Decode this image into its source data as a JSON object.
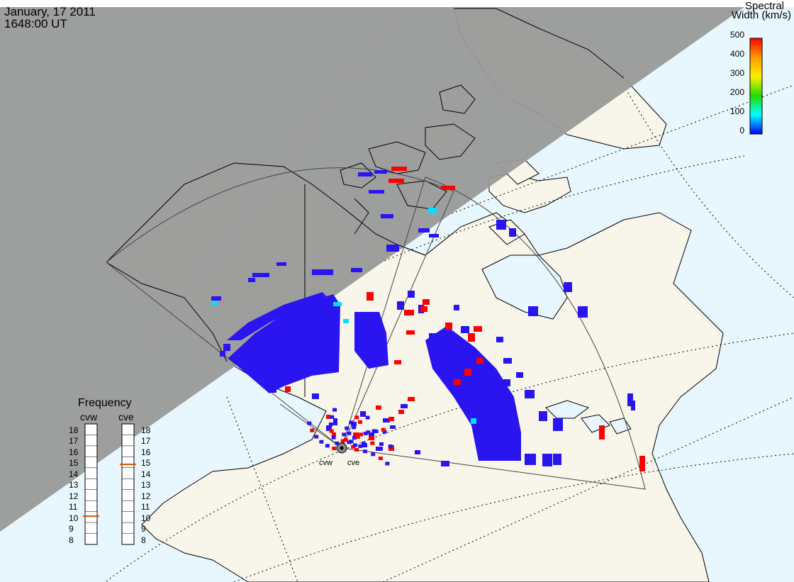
{
  "header": {
    "date": "January, 17 2011",
    "time": "1648:00 UT"
  },
  "colorbar": {
    "title_line1": "Spectral",
    "title_line2": "Width (km/s)",
    "ticks": [
      "500",
      "400",
      "300",
      "200",
      "100",
      "0"
    ],
    "colors": [
      "#ff0000",
      "#ffaa00",
      "#ffff00",
      "#00dd00",
      "#00ffff",
      "#0000ff"
    ]
  },
  "frequency_panel": {
    "title": "Frequency",
    "radar_labels": [
      "cvw",
      "cve"
    ],
    "ticks": [
      "18",
      "17",
      "16",
      "15",
      "14",
      "13",
      "12",
      "11",
      "10",
      "9",
      "8"
    ],
    "cvw_freq_mhz": 10.8,
    "cve_freq_mhz": 15.1,
    "indicator_color": "#e05000"
  },
  "radars": {
    "west_label": "cvw",
    "east_label": "cve"
  },
  "colors": {
    "night": "#999999",
    "ocean": "#e8f6fd",
    "land": "#f8f6ea",
    "low_width": "#2a14f0",
    "high_width": "#ff0000"
  }
}
